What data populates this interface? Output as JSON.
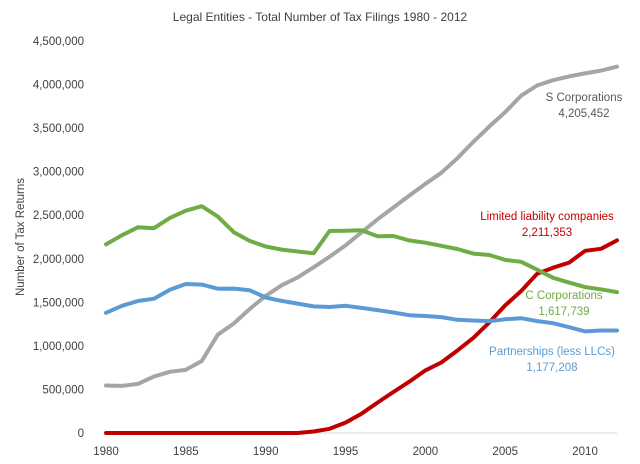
{
  "chart_data": {
    "type": "line",
    "title": "Legal Entities - Total Number of Tax Filings 1980 - 2012",
    "xlabel": "",
    "ylabel": "Number of Tax Returns",
    "xlim": [
      1980,
      2012
    ],
    "ylim": [
      0,
      4500000
    ],
    "x_ticks": [
      1980,
      1985,
      1990,
      1995,
      2000,
      2005,
      2010
    ],
    "y_ticks": [
      0,
      500000,
      1000000,
      1500000,
      2000000,
      2500000,
      3000000,
      3500000,
      4000000,
      4500000
    ],
    "y_tick_labels": [
      "0",
      "500,000",
      "1,000,000",
      "1,500,000",
      "2,000,000",
      "2,500,000",
      "3,000,000",
      "3,500,000",
      "4,000,000",
      "4,500,000"
    ],
    "x_tick_labels": [
      "1980",
      "1985",
      "1990",
      "1995",
      "2000",
      "2005",
      "2010"
    ],
    "grid": false,
    "legend": "none",
    "x": [
      1980,
      1981,
      1982,
      1983,
      1984,
      1985,
      1986,
      1987,
      1988,
      1989,
      1990,
      1991,
      1992,
      1993,
      1994,
      1995,
      1996,
      1997,
      1998,
      1999,
      2000,
      2001,
      2002,
      2003,
      2004,
      2005,
      2006,
      2007,
      2008,
      2009,
      2010,
      2011,
      2012
    ],
    "series": [
      {
        "name": "S Corporations",
        "label_lines": [
          "S Corporations",
          "4,205,452"
        ],
        "color": "#a5a5a5",
        "label_color": "#595959",
        "values": [
          545000,
          541000,
          564000,
          648000,
          702000,
          725000,
          826000,
          1128000,
          1257000,
          1423000,
          1575000,
          1696000,
          1786000,
          1902000,
          2024000,
          2154000,
          2304000,
          2452000,
          2589000,
          2726000,
          2860000,
          2987000,
          3154000,
          3342000,
          3518000,
          3684000,
          3873000,
          3990000,
          4050000,
          4094000,
          4128000,
          4160000,
          4205452
        ]
      },
      {
        "name": "Limited liability companies",
        "label_lines": [
          "Limited liability companies",
          "2,211,353"
        ],
        "color": "#c00000",
        "label_color": "#c00000",
        "values": [
          0,
          0,
          0,
          0,
          0,
          0,
          0,
          0,
          0,
          0,
          0,
          0,
          0,
          17000,
          48000,
          119000,
          221000,
          349000,
          471000,
          590000,
          719000,
          809000,
          946000,
          1092000,
          1270000,
          1465000,
          1630000,
          1829000,
          1898000,
          1956000,
          2092000,
          2115000,
          2211353
        ]
      },
      {
        "name": "C Corporations",
        "label_lines": [
          "C Corporations",
          "1,617,739"
        ],
        "color": "#6fac46",
        "label_color": "#6fac46",
        "values": [
          2165000,
          2271000,
          2361000,
          2351000,
          2469000,
          2552000,
          2603000,
          2484000,
          2305000,
          2205000,
          2141000,
          2105000,
          2084000,
          2063000,
          2319000,
          2321000,
          2327000,
          2258000,
          2261000,
          2210000,
          2185000,
          2149000,
          2112000,
          2060000,
          2043000,
          1987000,
          1965000,
          1875000,
          1782000,
          1727000,
          1675000,
          1650000,
          1617739
        ]
      },
      {
        "name": "Partnerships (less LLCs)",
        "label_lines": [
          "Partnerships (less LLCs)",
          "1,177,208"
        ],
        "color": "#5b9bd5",
        "label_color": "#5b9bd5",
        "values": [
          1380000,
          1460000,
          1515000,
          1542000,
          1644000,
          1711000,
          1703000,
          1656000,
          1658000,
          1638000,
          1555000,
          1516000,
          1485000,
          1453000,
          1446000,
          1460000,
          1436000,
          1411000,
          1383000,
          1352000,
          1343000,
          1330000,
          1299000,
          1291000,
          1285000,
          1305000,
          1318000,
          1285000,
          1260000,
          1215000,
          1166000,
          1177000,
          1177208
        ]
      }
    ]
  }
}
